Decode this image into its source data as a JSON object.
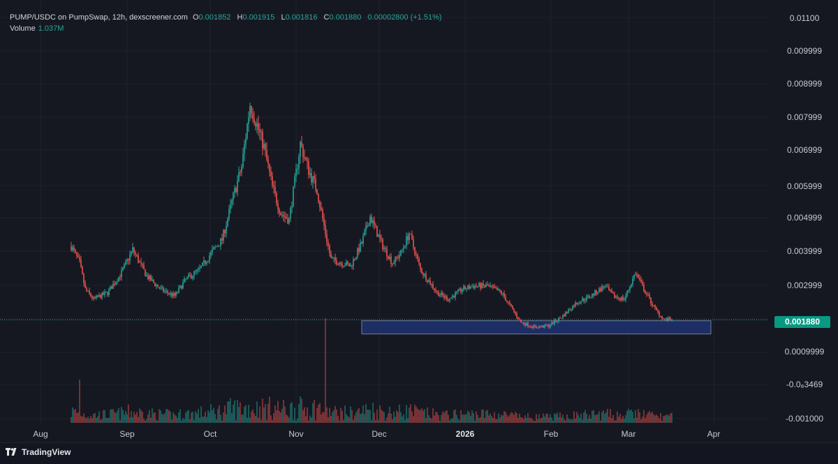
{
  "legend": {
    "symbol": "PUMP/USDC on PumpSwap, 12h, dexscreener.com",
    "open_label": "O",
    "open": "0.001852",
    "high_label": "H",
    "high": "0.001915",
    "low_label": "L",
    "low": "0.001816",
    "close_label": "C",
    "close": "0.001880",
    "change": "0.00002800 (+1.51%)",
    "volume_label": "Volume",
    "volume": "1.037M"
  },
  "price_axis": {
    "labels": [
      "0.01100",
      "0.009999",
      "0.008999",
      "0.007999",
      "0.006999",
      "0.005999",
      "0.004999",
      "0.003999",
      "0.002999",
      "0.001880",
      "0.0009999",
      "-0.0₈3469",
      "-0.001000"
    ]
  },
  "current_price": "0.001880",
  "time_axis": {
    "labels": [
      "Aug",
      "Sep",
      "Oct",
      "Nov",
      "Dec",
      "2026",
      "Feb",
      "Mar",
      "Apr"
    ],
    "bold_label": "2026"
  },
  "footer": {
    "brand": "TradingView"
  },
  "colors": {
    "up": "#26a69a",
    "down": "#ef5350",
    "zone": "#1f3270",
    "bg": "#161821"
  },
  "chart_data": {
    "type": "candlestick",
    "interval": "12h",
    "ylim": [
      -0.0011,
      0.0112
    ],
    "support_zone": {
      "low": 0.00145,
      "high": 0.00185,
      "from": "2025-10-24",
      "to": "2026-02-26"
    },
    "anchors": [
      [
        "2025-07-12",
        0.0041
      ],
      [
        "2025-07-15",
        0.0036
      ],
      [
        "2025-07-17",
        0.0028
      ],
      [
        "2025-07-20",
        0.0025
      ],
      [
        "2025-07-25",
        0.0027
      ],
      [
        "2025-07-30",
        0.0033
      ],
      [
        "2025-08-03",
        0.004
      ],
      [
        "2025-08-08",
        0.0032
      ],
      [
        "2025-08-13",
        0.0028
      ],
      [
        "2025-08-18",
        0.0026
      ],
      [
        "2025-08-22",
        0.0031
      ],
      [
        "2025-08-27",
        0.0034
      ],
      [
        "2025-09-01",
        0.004
      ],
      [
        "2025-09-04",
        0.0043
      ],
      [
        "2025-09-08",
        0.0056
      ],
      [
        "2025-09-11",
        0.0065
      ],
      [
        "2025-09-14",
        0.0084
      ],
      [
        "2025-09-16",
        0.0079
      ],
      [
        "2025-09-19",
        0.0071
      ],
      [
        "2025-09-22",
        0.0059
      ],
      [
        "2025-09-25",
        0.0051
      ],
      [
        "2025-09-28",
        0.0049
      ],
      [
        "2025-10-01",
        0.0066
      ],
      [
        "2025-10-02",
        0.0072
      ],
      [
        "2025-10-05",
        0.0064
      ],
      [
        "2025-10-08",
        0.0058
      ],
      [
        "2025-10-11",
        0.0045
      ],
      [
        "2025-10-13",
        0.0037
      ],
      [
        "2025-10-17",
        0.0036
      ],
      [
        "2025-10-20",
        0.0035
      ],
      [
        "2025-10-24",
        0.0042
      ],
      [
        "2025-10-27",
        0.005
      ],
      [
        "2025-10-31",
        0.0042
      ],
      [
        "2025-11-04",
        0.0036
      ],
      [
        "2025-11-07",
        0.0039
      ],
      [
        "2025-11-10",
        0.0045
      ],
      [
        "2025-11-14",
        0.0034
      ],
      [
        "2025-11-20",
        0.0027
      ],
      [
        "2025-11-24",
        0.0025
      ],
      [
        "2025-11-29",
        0.0028
      ],
      [
        "2025-12-03",
        0.0029
      ],
      [
        "2025-12-08",
        0.0029
      ],
      [
        "2025-12-13",
        0.0027
      ],
      [
        "2025-12-20",
        0.0018
      ],
      [
        "2025-12-25",
        0.00165
      ],
      [
        "2025-12-30",
        0.0017
      ],
      [
        "2026-01-04",
        0.002
      ],
      [
        "2026-01-09",
        0.0024
      ],
      [
        "2026-01-14",
        0.0026
      ],
      [
        "2026-01-19",
        0.0029
      ],
      [
        "2026-01-22",
        0.0026
      ],
      [
        "2026-01-26",
        0.0025
      ],
      [
        "2026-01-30",
        0.0033
      ],
      [
        "2026-02-02",
        0.0028
      ],
      [
        "2026-02-06",
        0.0022
      ],
      [
        "2026-02-09",
        0.0019
      ],
      [
        "2026-02-12",
        0.00188
      ]
    ]
  }
}
